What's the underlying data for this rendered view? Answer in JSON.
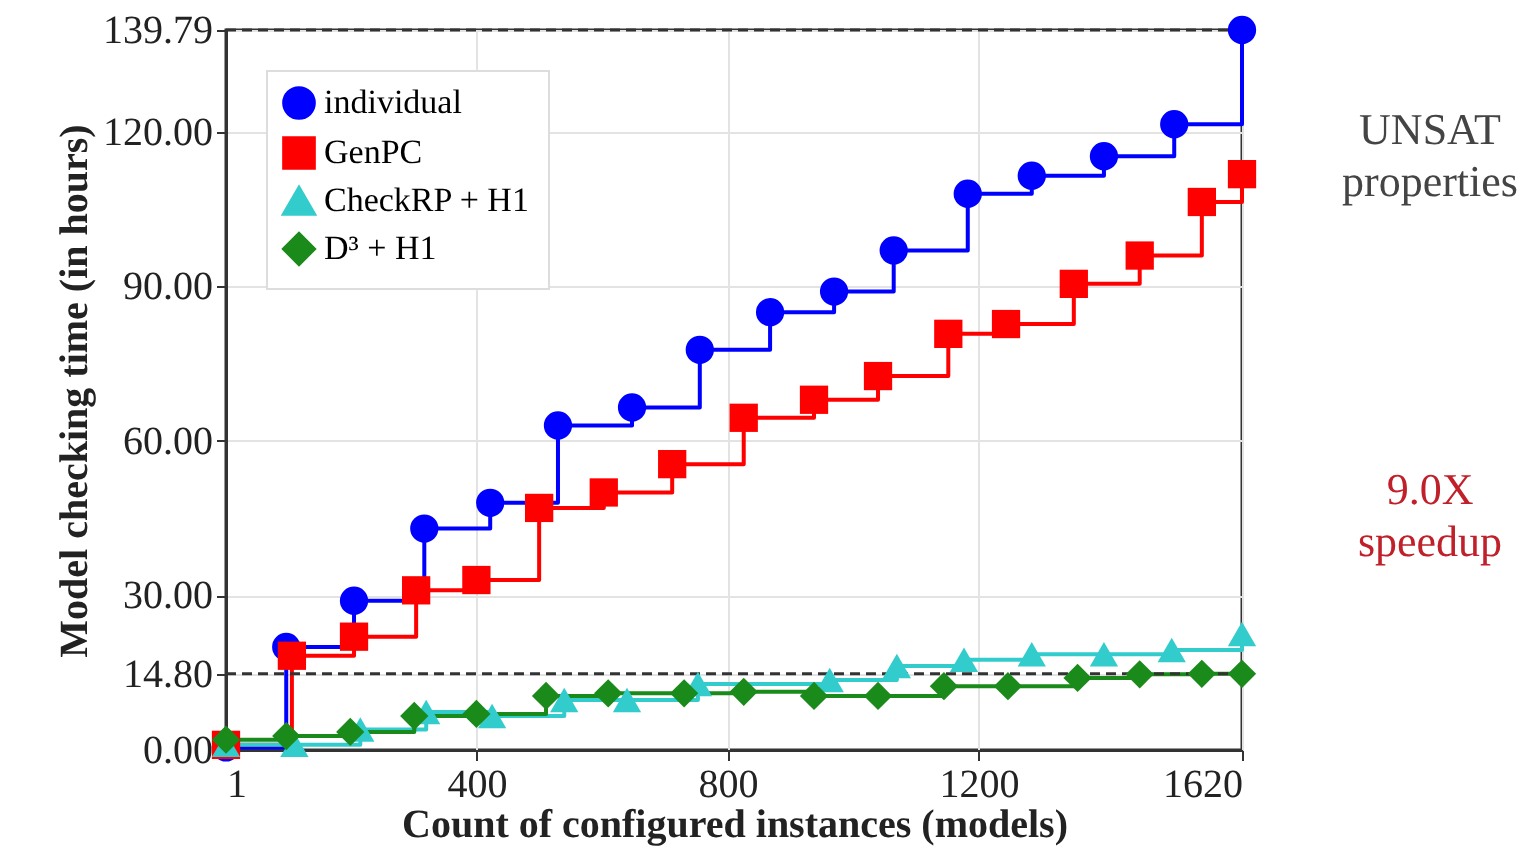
{
  "chart_data": {
    "type": "step",
    "xlabel": "Count of configured instances (models)",
    "ylabel": "Model checking time (in hours)",
    "xlim": [
      1,
      1620
    ],
    "xticks": [
      1,
      400,
      800,
      1200,
      1620
    ],
    "ylim": [
      0,
      139.79
    ],
    "yticks": [
      {
        "value": 0,
        "label": "0.00"
      },
      {
        "value": 14.8,
        "label": "14.80"
      },
      {
        "value": 30,
        "label": "30.00"
      },
      {
        "value": 60,
        "label": "60.00"
      },
      {
        "value": 90,
        "label": "90.00"
      },
      {
        "value": 120,
        "label": "120.00"
      },
      {
        "value": 139.79,
        "label": "139.79"
      }
    ],
    "grid": true,
    "legend": "top left",
    "series": [
      {
        "name": "individual",
        "color": "#0000ff",
        "marker": "circle",
        "x": [
          1,
          97,
          205,
          317,
          422,
          530,
          648,
          756,
          868,
          970,
          1065,
          1183,
          1285,
          1400,
          1512,
          1620
        ],
        "values": [
          0.5,
          20,
          29,
          43,
          48,
          63,
          66.5,
          77.7,
          85,
          89,
          97,
          108,
          111.5,
          115.3,
          121.5,
          139.79
        ]
      },
      {
        "name": "GenPC",
        "color": "#ff0000",
        "marker": "square",
        "x": [
          1,
          106,
          205,
          304,
          400,
          500,
          603,
          712,
          826,
          938,
          1040,
          1152,
          1244,
          1352,
          1457,
          1556,
          1620
        ],
        "values": [
          1,
          18.3,
          22,
          31,
          33,
          47,
          50,
          55.5,
          64.5,
          68,
          72.6,
          80.8,
          82.7,
          90.5,
          96,
          106.4,
          111.8
        ]
      },
      {
        "name": "CheckRP + H1",
        "color": "#33cccc",
        "marker": "triangle",
        "x": [
          1,
          110,
          215,
          320,
          425,
          540,
          640,
          753,
          963,
          1070,
          1177,
          1285,
          1400,
          1508,
          1620
        ],
        "values": [
          1,
          1,
          4,
          7.4,
          6.6,
          9.7,
          9.7,
          12.8,
          13.6,
          16.3,
          17.5,
          18.6,
          18.6,
          19.4,
          22.5
        ]
      },
      {
        "name": "D³ + H1",
        "color": "#1a8a1a",
        "marker": "diamond",
        "x": [
          1,
          97,
          199,
          301,
          400,
          511,
          610,
          731,
          826,
          938,
          1040,
          1145,
          1247,
          1358,
          1457,
          1556,
          1620
        ],
        "values": [
          2,
          2.7,
          3.5,
          6.6,
          7,
          10.5,
          11,
          11,
          11.3,
          10.5,
          10.5,
          12.4,
          12.4,
          14,
          14.7,
          14.8,
          14.8
        ]
      }
    ],
    "ref_lines": [
      {
        "axis": "y",
        "value": 139.79,
        "line_style": "dashed",
        "color": "#333333"
      },
      {
        "axis": "y",
        "value": 14.8,
        "line_style": "dashed",
        "color": "#333333"
      }
    ],
    "annotations": [
      "UNSAT properties",
      "9.0X speedup"
    ]
  }
}
